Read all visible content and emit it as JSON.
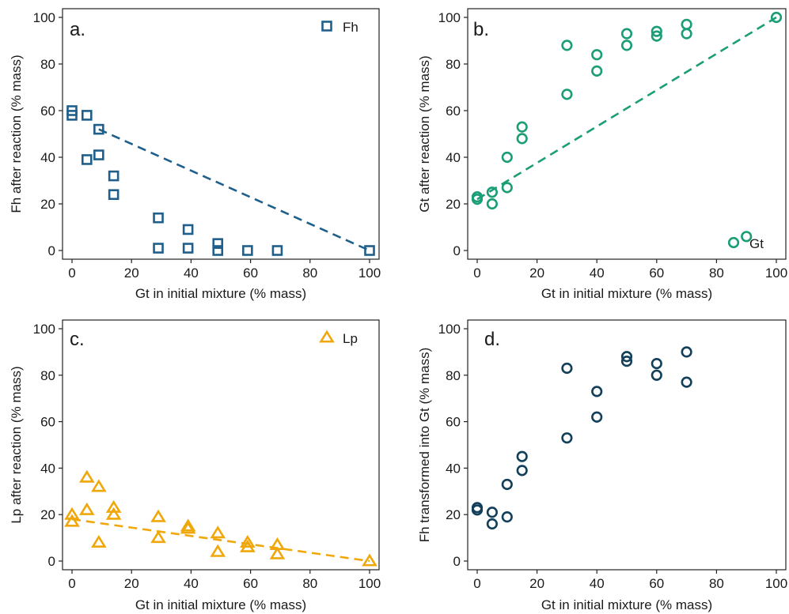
{
  "chart_data": [
    {
      "panel": "a.",
      "type": "scatter",
      "xlabel": "Gt in initial mixture (% mass)",
      "ylabel": "Fh after reaction (% mass)",
      "xlim": [
        0,
        100
      ],
      "ylim": [
        0,
        100
      ],
      "xticks": [
        0,
        20,
        40,
        60,
        80,
        100
      ],
      "yticks": [
        0,
        20,
        40,
        60,
        80,
        100
      ],
      "legend_position": "top-right",
      "color": "#1f5f8b",
      "series": [
        {
          "name": "Fh",
          "marker": "square",
          "x": [
            0,
            0,
            5,
            5,
            9,
            9,
            14,
            14,
            29,
            29,
            39,
            39,
            49,
            49,
            59,
            69,
            100
          ],
          "y": [
            60,
            58,
            58,
            39,
            52,
            41,
            32,
            24,
            14,
            1,
            9,
            1,
            3,
            0,
            0,
            0,
            0
          ]
        }
      ],
      "trendline": {
        "style": "dashed",
        "x": [
          9,
          100
        ],
        "y": [
          52,
          0
        ]
      }
    },
    {
      "panel": "b.",
      "type": "scatter",
      "xlabel": "Gt in initial mixture (% mass)",
      "ylabel": "Gt after reaction (% mass)",
      "xlim": [
        0,
        100
      ],
      "ylim": [
        0,
        100
      ],
      "xticks": [
        0,
        20,
        40,
        60,
        80,
        100
      ],
      "yticks": [
        0,
        20,
        40,
        60,
        80,
        100
      ],
      "legend_position": "bottom-right",
      "color": "#1b9e77",
      "series": [
        {
          "name": "Gt",
          "marker": "circle",
          "x": [
            0,
            0,
            5,
            5,
            10,
            10,
            15,
            15,
            30,
            30,
            40,
            40,
            50,
            50,
            60,
            60,
            70,
            70,
            90,
            100
          ],
          "y": [
            23,
            22,
            25,
            20,
            40,
            27,
            53,
            48,
            88,
            67,
            84,
            77,
            93,
            88,
            94,
            92,
            97,
            93,
            6,
            100
          ]
        }
      ],
      "trendline": {
        "style": "dashed",
        "x": [
          0,
          100
        ],
        "y": [
          22,
          100
        ]
      }
    },
    {
      "panel": "c.",
      "type": "scatter",
      "xlabel": "Gt in initial mixture (% mass)",
      "ylabel": "Lp after reaction (% mass)",
      "xlim": [
        0,
        100
      ],
      "ylim": [
        0,
        100
      ],
      "xticks": [
        0,
        20,
        40,
        60,
        80,
        100
      ],
      "yticks": [
        0,
        20,
        40,
        60,
        80,
        100
      ],
      "legend_position": "top-right",
      "color": "#f0a70a",
      "series": [
        {
          "name": "Lp",
          "marker": "triangle",
          "x": [
            0,
            0,
            5,
            5,
            9,
            9,
            14,
            14,
            29,
            29,
            39,
            39,
            49,
            49,
            59,
            59,
            69,
            69,
            100
          ],
          "y": [
            20,
            17,
            36,
            22,
            32,
            8,
            23,
            20,
            19,
            10,
            15,
            14,
            12,
            4,
            8,
            6,
            7,
            3,
            0
          ]
        }
      ],
      "trendline": {
        "style": "dashed",
        "x": [
          0,
          100
        ],
        "y": [
          18,
          0
        ]
      }
    },
    {
      "panel": "d.",
      "type": "scatter",
      "xlabel": "Gt in initial mixture (% mass)",
      "ylabel": "Fh transformed into Gt (% mass)",
      "xlim": [
        0,
        100
      ],
      "ylim": [
        0,
        100
      ],
      "xticks": [
        0,
        20,
        40,
        60,
        80,
        100
      ],
      "yticks": [
        0,
        20,
        40,
        60,
        80,
        100
      ],
      "color": "#123f5a",
      "series": [
        {
          "marker": "circle",
          "x": [
            0,
            0,
            5,
            5,
            10,
            10,
            15,
            15,
            30,
            30,
            40,
            40,
            50,
            50,
            60,
            60,
            70,
            70
          ],
          "y": [
            23,
            22,
            21,
            16,
            33,
            19,
            45,
            39,
            83,
            53,
            73,
            62,
            88,
            86,
            85,
            80,
            90,
            77
          ]
        }
      ]
    }
  ]
}
